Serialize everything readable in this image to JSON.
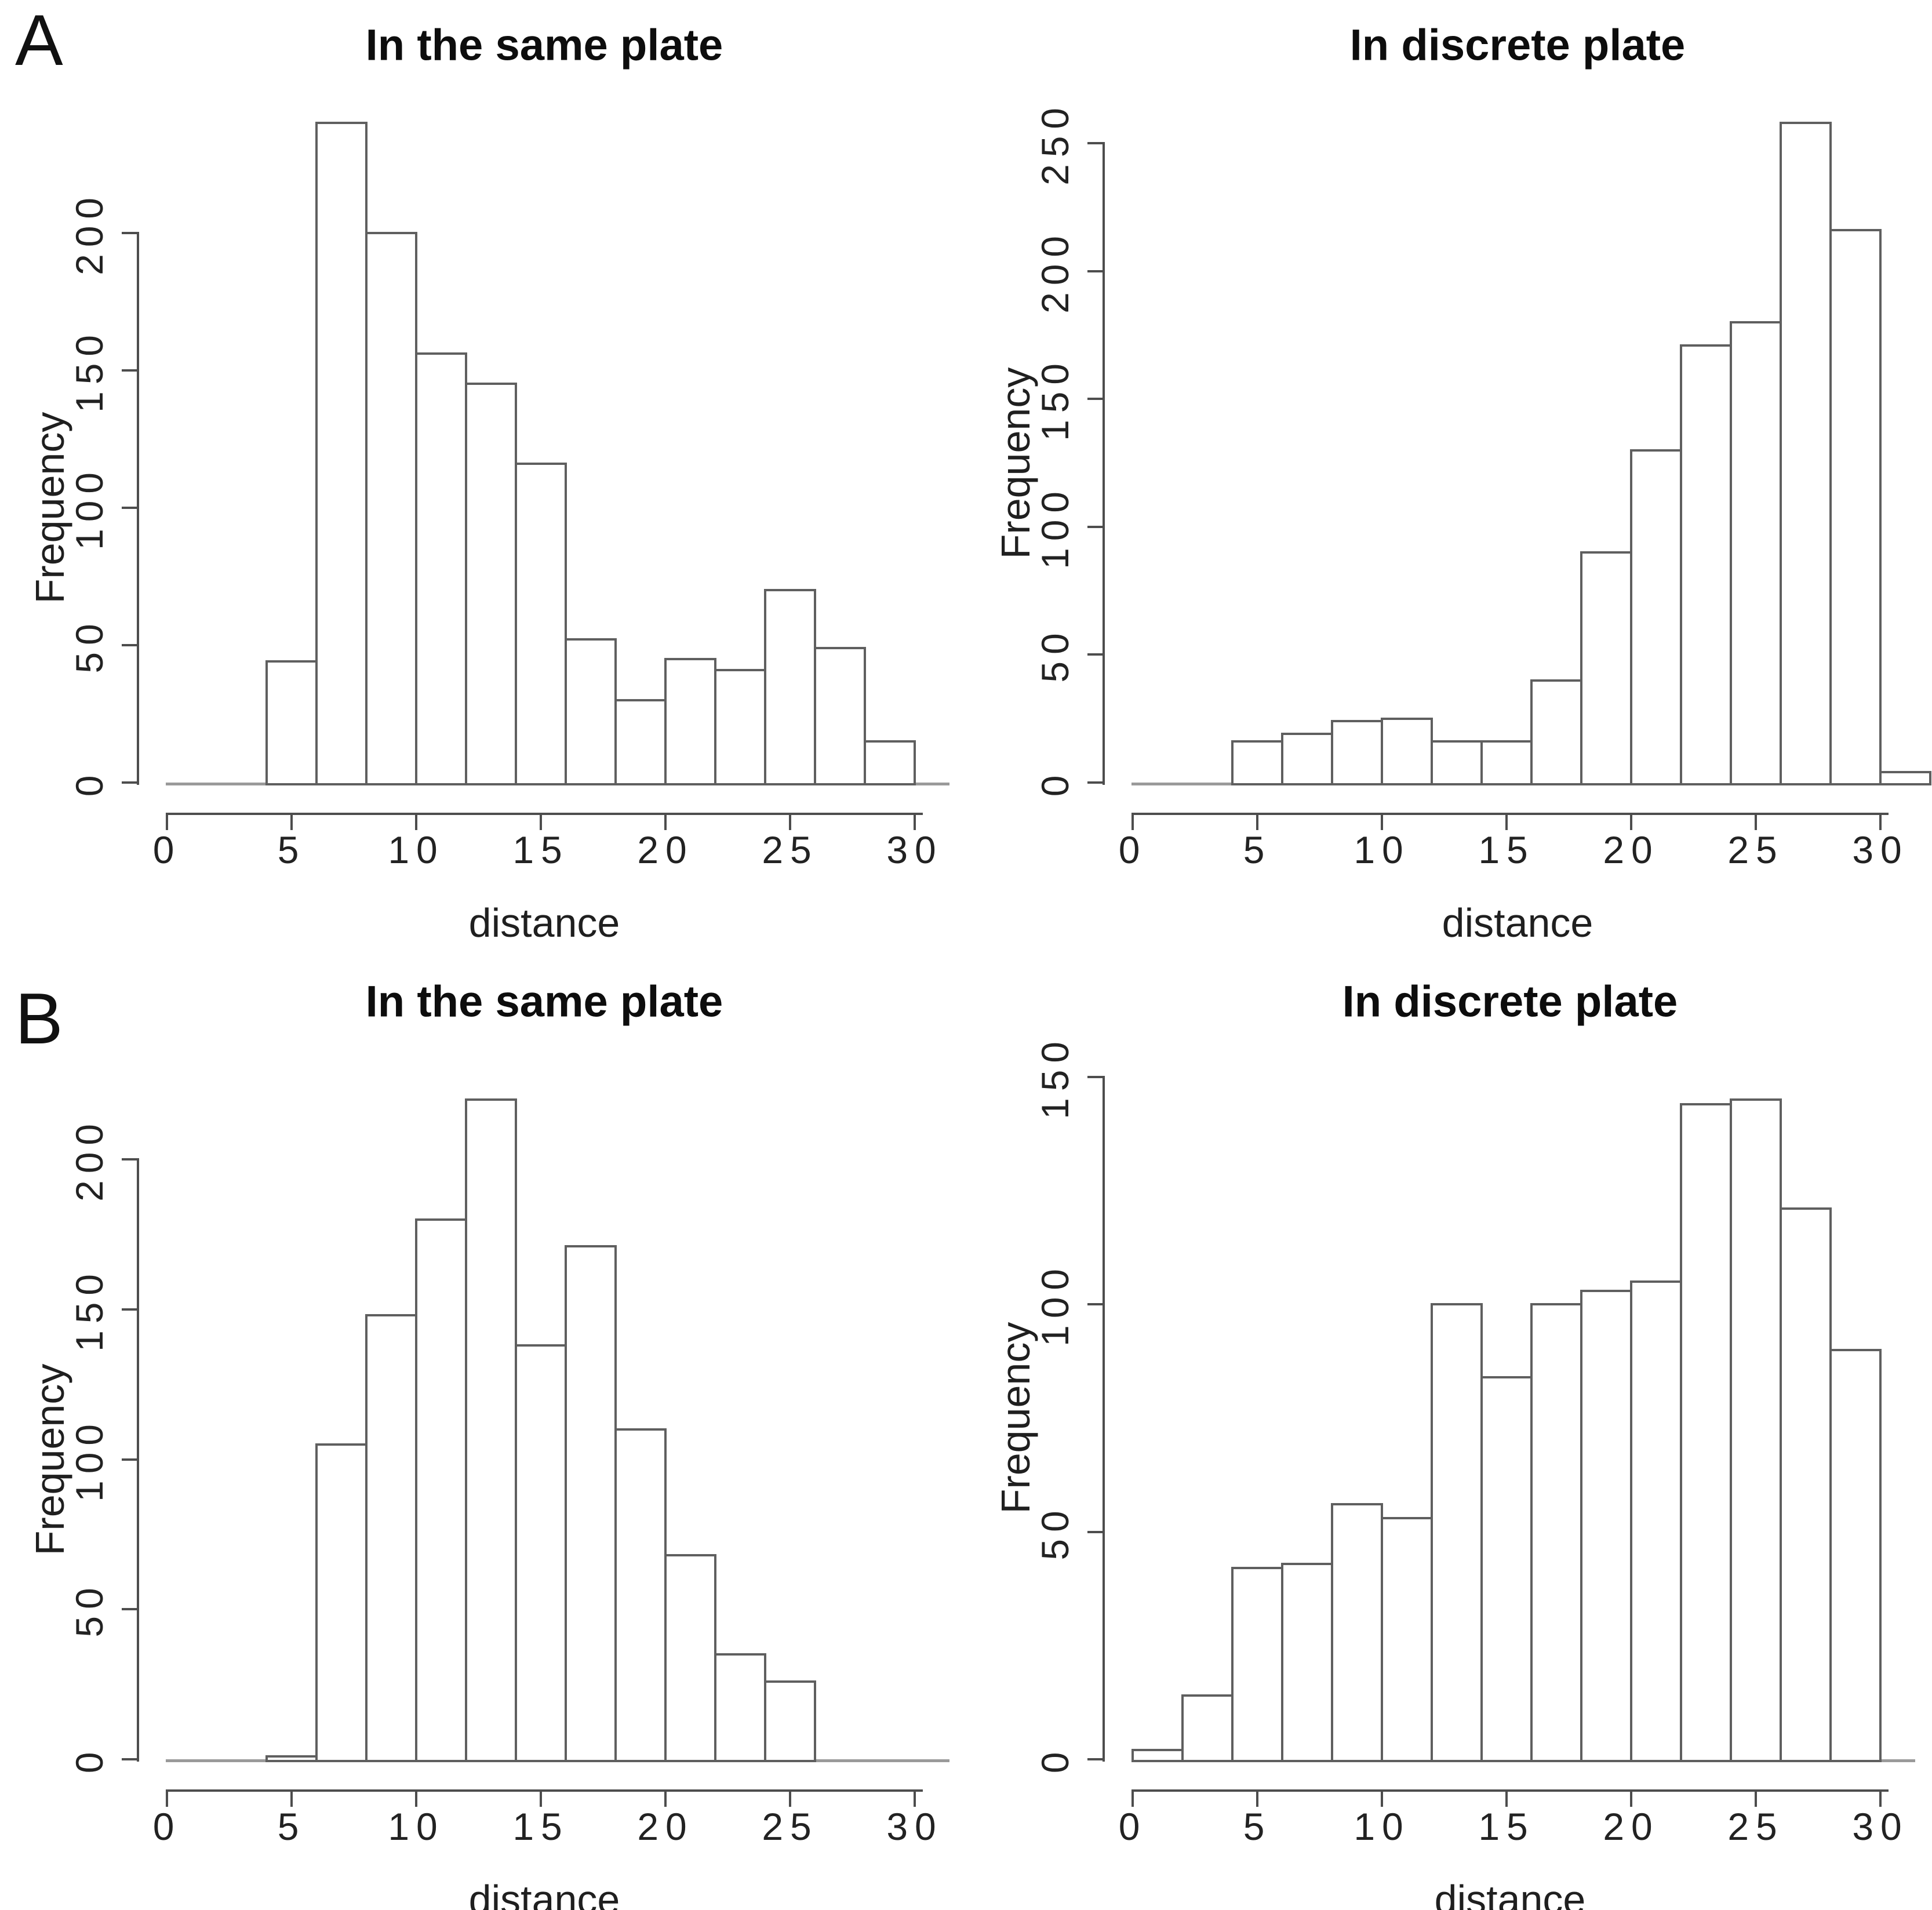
{
  "figure": {
    "panel_labels": [
      "A",
      "B"
    ],
    "colors": {
      "background": "#ffffff",
      "bar_fill": "#ffffff",
      "bar_border": "#5f5f5f",
      "baseline": "#9a9a9a",
      "axis": "#4d4d4d",
      "tick_text": "#222222",
      "title_text": "#0d0d0d"
    }
  },
  "chart_data": [
    {
      "type": "bar",
      "subtype": "histogram",
      "panel": "A",
      "position": "top-left",
      "title": "In the same plate",
      "xlabel": "distance",
      "ylabel": "Frequency",
      "bin_start": 4,
      "bin_width": 2,
      "bin_edges": [
        4,
        6,
        8,
        10,
        12,
        14,
        16,
        18,
        20,
        22,
        24,
        26,
        28,
        30
      ],
      "counts": [
        44,
        240,
        200,
        156,
        145,
        116,
        52,
        30,
        45,
        41,
        70,
        49,
        15
      ],
      "xticks": [
        0,
        5,
        10,
        15,
        20,
        25,
        30
      ],
      "yticks": [
        0,
        50,
        100,
        150,
        200
      ],
      "xlim": [
        0,
        31
      ],
      "ylim": [
        0,
        240
      ],
      "grid": false,
      "legend": null
    },
    {
      "type": "bar",
      "subtype": "histogram",
      "panel": "A",
      "position": "top-right",
      "title": "In discrete plate",
      "xlabel": "distance",
      "ylabel": "Frequency",
      "bin_start": 4,
      "bin_width": 2,
      "bin_edges": [
        4,
        6,
        8,
        10,
        12,
        14,
        16,
        18,
        20,
        22,
        24,
        26,
        28,
        30,
        32
      ],
      "counts": [
        16,
        19,
        24,
        25,
        16,
        16,
        40,
        90,
        130,
        171,
        180,
        258,
        216,
        4
      ],
      "xticks": [
        0,
        5,
        10,
        15,
        20,
        25,
        30
      ],
      "yticks": [
        0,
        50,
        100,
        150,
        200,
        250
      ],
      "xlim": [
        0,
        31
      ],
      "ylim": [
        0,
        258
      ],
      "grid": false,
      "legend": null
    },
    {
      "type": "bar",
      "subtype": "histogram",
      "panel": "B",
      "position": "bottom-left",
      "title": "In the same plate",
      "xlabel": "distance",
      "ylabel": "Frequency",
      "bin_start": 4,
      "bin_width": 2,
      "bin_edges": [
        4,
        6,
        8,
        10,
        12,
        14,
        16,
        18,
        20,
        22,
        24,
        26
      ],
      "counts": [
        1,
        105,
        148,
        180,
        220,
        138,
        171,
        110,
        68,
        35,
        26
      ],
      "xticks": [
        0,
        5,
        10,
        15,
        20,
        25,
        30
      ],
      "yticks": [
        0,
        50,
        100,
        150,
        200
      ],
      "xlim": [
        0,
        31
      ],
      "ylim": [
        0,
        220
      ],
      "grid": false,
      "legend": null
    },
    {
      "type": "bar",
      "subtype": "histogram",
      "panel": "B",
      "position": "bottom-right",
      "title": "In discrete plate",
      "xlabel": "distance",
      "ylabel": "Frequency",
      "bin_start": 0,
      "bin_width": 2,
      "bin_edges": [
        0,
        2,
        4,
        6,
        8,
        10,
        12,
        14,
        16,
        18,
        20,
        22,
        24,
        26,
        28,
        30
      ],
      "counts": [
        2,
        14,
        42,
        43,
        56,
        53,
        100,
        84,
        100,
        103,
        105,
        144,
        145,
        121,
        90
      ],
      "xticks": [
        0,
        5,
        10,
        15,
        20,
        25,
        30
      ],
      "yticks": [
        0,
        50,
        100,
        150
      ],
      "xlim": [
        0,
        31
      ],
      "ylim": [
        0,
        145
      ],
      "grid": false,
      "legend": null
    }
  ]
}
